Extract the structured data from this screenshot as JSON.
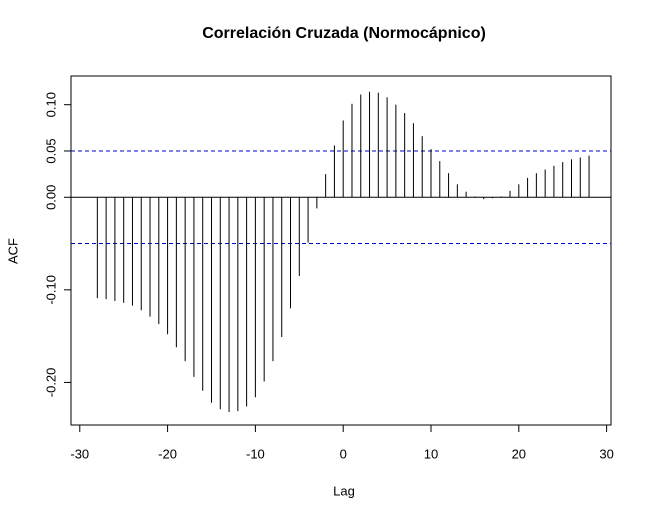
{
  "chart_data": {
    "type": "ccf",
    "title": "Correlación Cruzada (Normocápnico)",
    "x_label": "Lag",
    "y_label": "ACF",
    "x": [
      -28,
      -27,
      -26,
      -25,
      -24,
      -23,
      -22,
      -21,
      -20,
      -19,
      -18,
      -17,
      -16,
      -15,
      -14,
      -13,
      -12,
      -11,
      -10,
      -9,
      -8,
      -7,
      -6,
      -5,
      -4,
      -3,
      -2,
      -1,
      0,
      1,
      2,
      3,
      4,
      5,
      6,
      7,
      8,
      9,
      10,
      11,
      12,
      13,
      14,
      15,
      16,
      17,
      18,
      19,
      20,
      21,
      22,
      23,
      24,
      25,
      26,
      27,
      28
    ],
    "values": [
      -0.109,
      -0.11,
      -0.112,
      -0.114,
      -0.117,
      -0.122,
      -0.129,
      -0.137,
      -0.148,
      -0.162,
      -0.177,
      -0.194,
      -0.209,
      -0.222,
      -0.229,
      -0.232,
      -0.231,
      -0.226,
      -0.216,
      -0.199,
      -0.177,
      -0.151,
      -0.12,
      -0.085,
      -0.049,
      -0.012,
      0.025,
      0.056,
      0.083,
      0.101,
      0.111,
      0.114,
      0.113,
      0.108,
      0.1,
      0.091,
      0.08,
      0.066,
      0.052,
      0.039,
      0.026,
      0.014,
      0.006,
      0.001,
      -0.002,
      -0.001,
      0.001,
      0.007,
      0.014,
      0.021,
      0.026,
      0.03,
      0.034,
      0.038,
      0.041,
      0.043,
      0.045
    ],
    "color": "#000000",
    "ci": [
      -0.05,
      0.05
    ],
    "ci_color": "#0000cc",
    "xlim": [
      -31,
      30.5
    ],
    "xticks": [
      -30,
      -20,
      -10,
      0,
      10,
      20,
      30
    ],
    "ylim": [
      -0.246,
      0.131
    ],
    "yticks": [
      {
        "value": -0.2,
        "label": "-0.20"
      },
      {
        "value": -0.1,
        "label": "-0.10"
      },
      {
        "value": 0,
        "label": "0.00"
      },
      {
        "value": 0.05,
        "label": "0.05"
      },
      {
        "value": 0.1,
        "label": "0.10"
      }
    ]
  }
}
